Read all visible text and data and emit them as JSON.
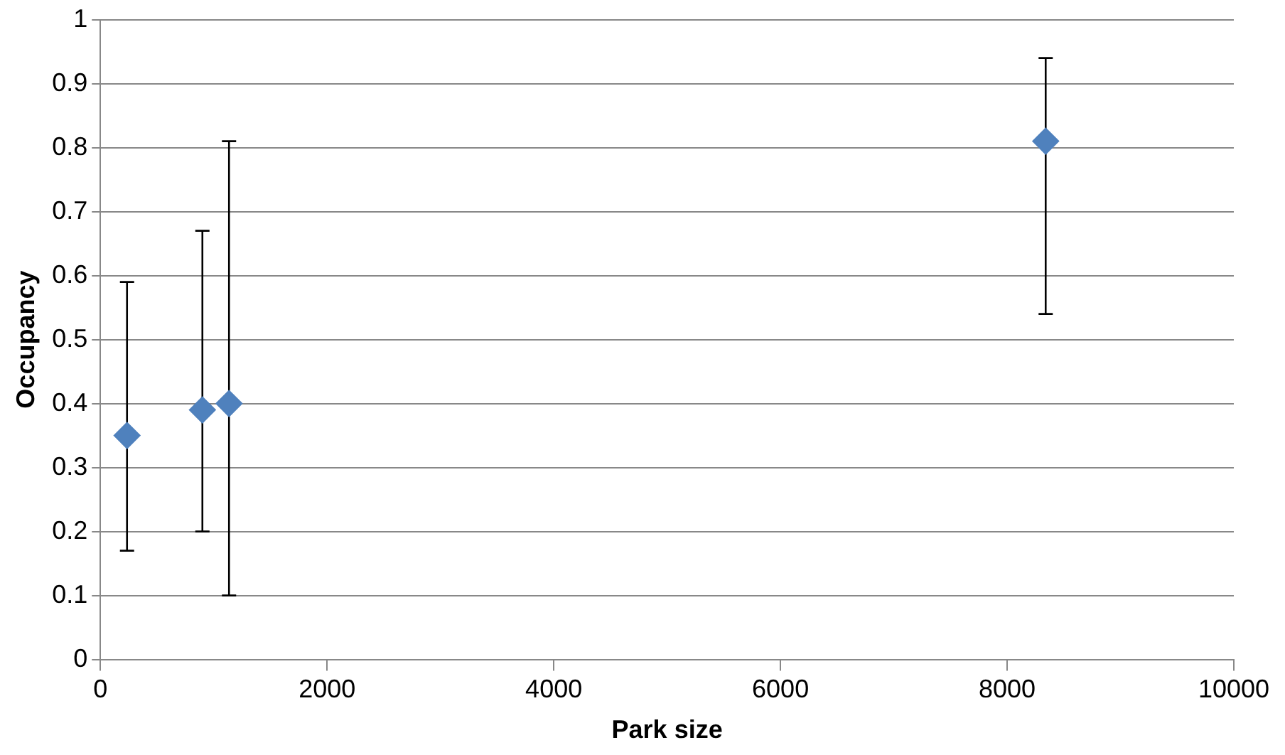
{
  "chart_data": {
    "type": "scatter",
    "xlabel": "Park size",
    "ylabel": "Occupancy",
    "x": [
      235,
      900,
      1135,
      8340
    ],
    "series": [
      {
        "color": "#4f81bd",
        "values": [
          0.35,
          0.39,
          0.4,
          0.81
        ],
        "errors": [
          [
            0.17,
            0.59
          ],
          [
            0.2,
            0.67
          ],
          [
            0.1,
            0.81
          ],
          [
            0.54,
            0.94
          ]
        ]
      }
    ],
    "xlim": [
      0,
      10000
    ],
    "xticks": [
      0,
      2000,
      4000,
      6000,
      8000,
      10000
    ],
    "ylim": [
      0,
      1
    ],
    "yticks": [
      0,
      0.1,
      0.2,
      0.3,
      0.4,
      0.5,
      0.6,
      0.7,
      0.8,
      0.9,
      1
    ],
    "grid": "y",
    "legend": false,
    "marker": "diamond"
  }
}
